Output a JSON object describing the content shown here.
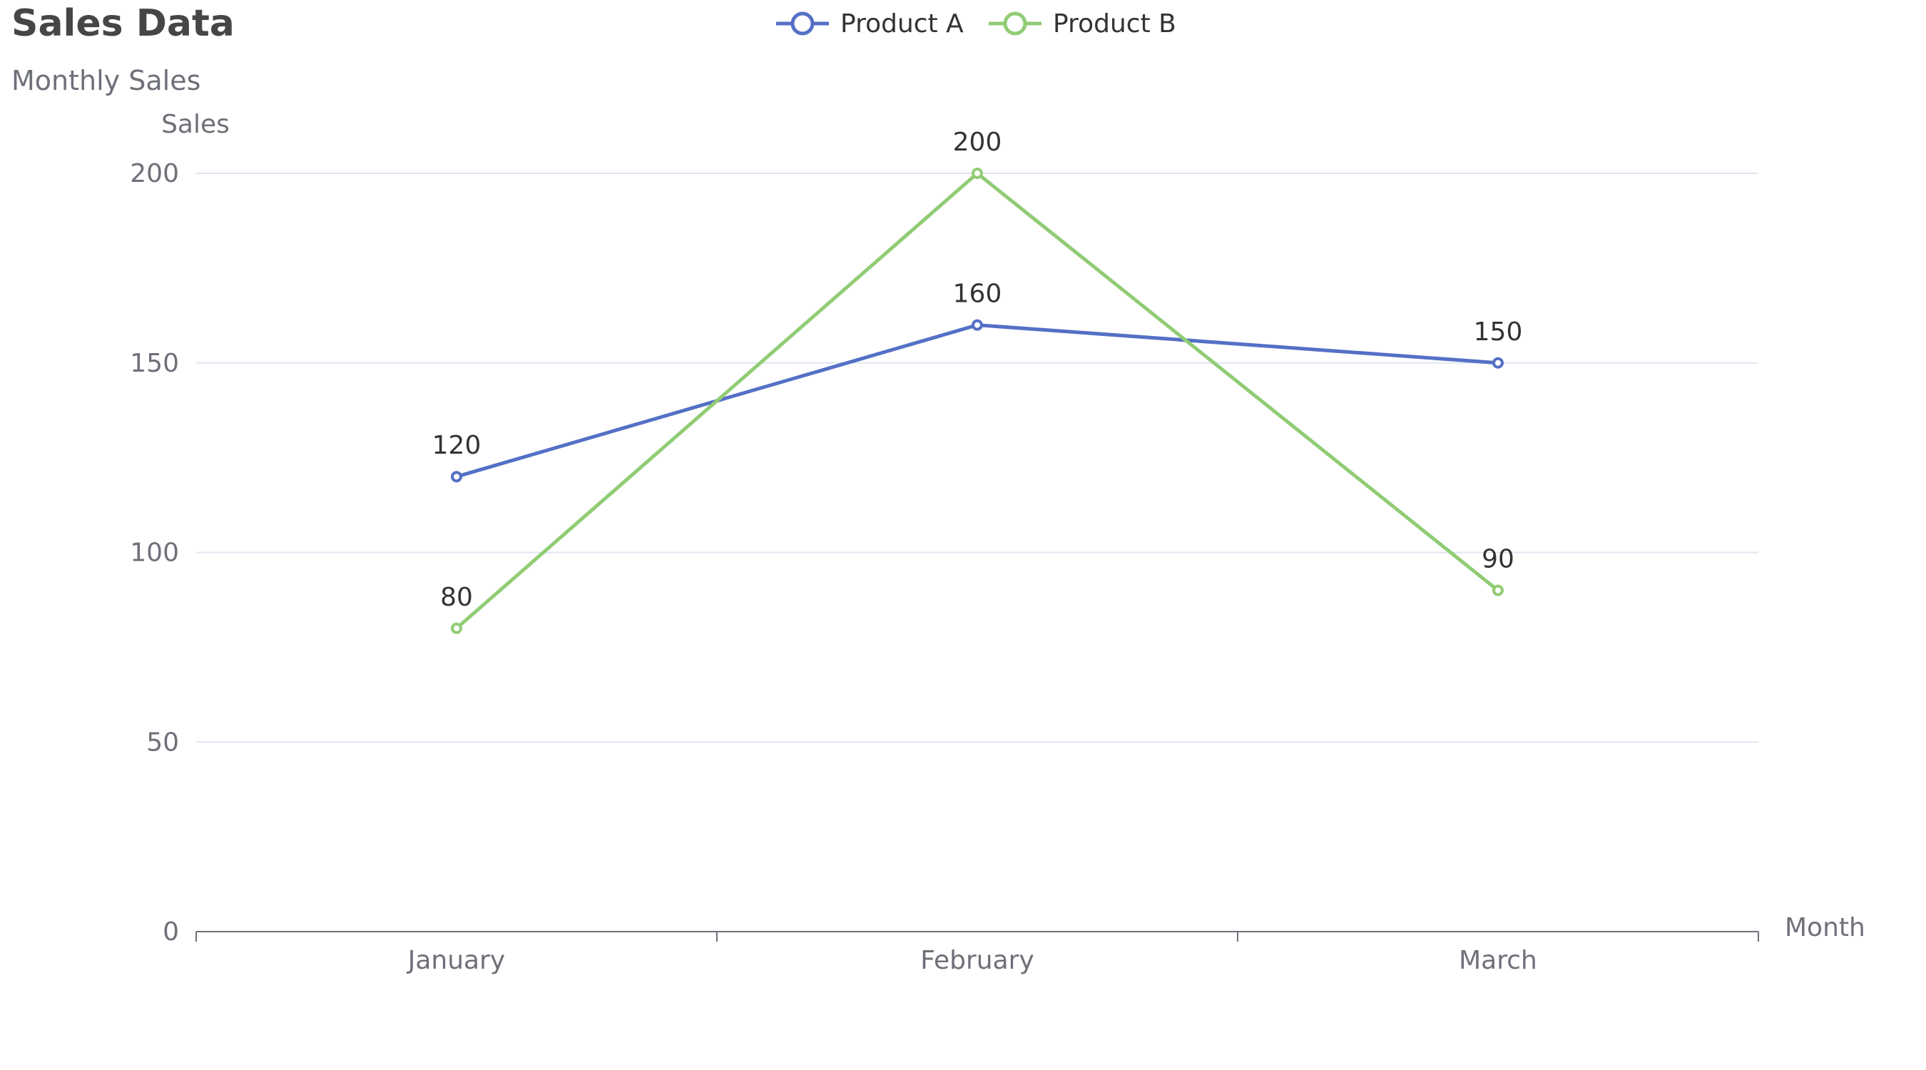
{
  "chart_data": {
    "type": "line",
    "title": "Sales Data",
    "subtitle": "Monthly Sales",
    "xlabel": "Month",
    "ylabel": "Sales",
    "categories": [
      "January",
      "February",
      "March"
    ],
    "ylim": [
      0,
      200
    ],
    "yticks": [
      0,
      50,
      100,
      150,
      200
    ],
    "grid": true,
    "legend_position": "top-center",
    "series": [
      {
        "name": "Product A",
        "color": "#5470c6",
        "values": [
          120,
          160,
          150
        ]
      },
      {
        "name": "Product B",
        "color": "#91cc75",
        "values": [
          80,
          200,
          90
        ]
      }
    ]
  }
}
